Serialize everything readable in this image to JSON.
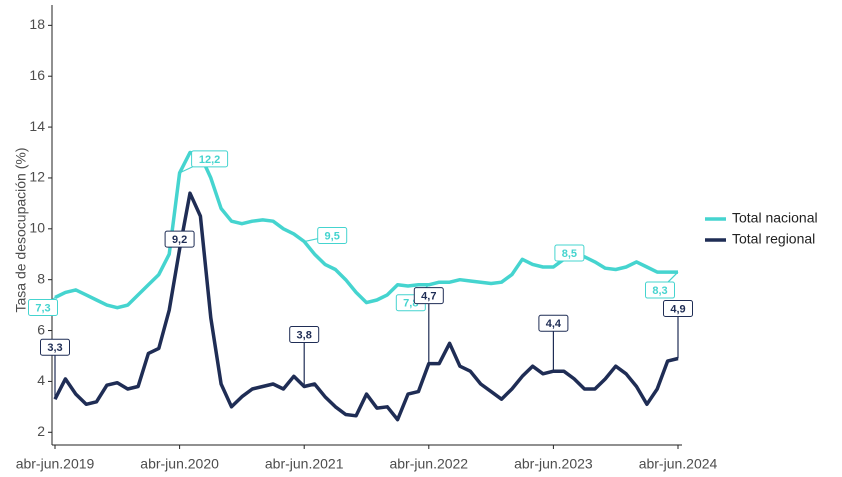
{
  "chart_data": {
    "type": "line",
    "y_label": "Tasa de desocupación (%)",
    "categories": [
      "abr-jun.2019",
      null,
      null,
      null,
      null,
      null,
      null,
      null,
      null,
      null,
      null,
      null,
      "abr-jun.2020",
      null,
      null,
      null,
      null,
      null,
      null,
      null,
      null,
      null,
      null,
      null,
      "abr-jun.2021",
      null,
      null,
      null,
      null,
      null,
      null,
      null,
      null,
      null,
      null,
      null,
      "abr-jun.2022",
      null,
      null,
      null,
      null,
      null,
      null,
      null,
      null,
      null,
      null,
      null,
      "abr-jun.2023",
      null,
      null,
      null,
      null,
      null,
      null,
      null,
      null,
      null,
      null,
      null,
      "abr-jun.2024"
    ],
    "series": [
      {
        "name": "Total nacional",
        "color": "#45d4cf",
        "values": [
          7.3,
          7.5,
          7.6,
          7.4,
          7.2,
          7.0,
          6.9,
          7.0,
          7.4,
          7.8,
          8.2,
          9.0,
          12.2,
          13.0,
          12.9,
          12.0,
          10.8,
          10.3,
          10.2,
          10.3,
          10.35,
          10.3,
          10.0,
          9.8,
          9.5,
          9.0,
          8.6,
          8.4,
          8.0,
          7.5,
          7.1,
          7.2,
          7.4,
          7.8,
          7.75,
          7.8,
          7.8,
          7.9,
          7.9,
          8.0,
          7.95,
          7.9,
          7.85,
          7.9,
          8.2,
          8.8,
          8.6,
          8.5,
          8.5,
          8.8,
          9.0,
          8.9,
          8.7,
          8.45,
          8.4,
          8.5,
          8.7,
          8.5,
          8.3,
          8.3,
          8.3
        ],
        "value_labels": [
          "7,3",
          null,
          null,
          null,
          null,
          null,
          null,
          null,
          null,
          null,
          null,
          null,
          "12,2",
          null,
          null,
          null,
          null,
          null,
          null,
          null,
          null,
          null,
          null,
          null,
          "9,5",
          null,
          null,
          null,
          null,
          null,
          null,
          null,
          null,
          null,
          null,
          null,
          "7,8",
          null,
          null,
          null,
          null,
          null,
          null,
          null,
          null,
          null,
          null,
          null,
          "8,5",
          null,
          null,
          null,
          null,
          null,
          null,
          null,
          null,
          null,
          null,
          null,
          "8,3"
        ]
      },
      {
        "name": "Total regional",
        "color": "#1f2d55",
        "values": [
          3.3,
          4.1,
          3.5,
          3.1,
          3.2,
          3.85,
          3.95,
          3.7,
          3.8,
          5.1,
          5.3,
          6.8,
          9.2,
          11.4,
          10.5,
          6.5,
          3.9,
          3.0,
          3.4,
          3.7,
          3.8,
          3.9,
          3.7,
          4.2,
          3.8,
          3.9,
          3.4,
          3.0,
          2.7,
          2.65,
          3.5,
          2.95,
          3.0,
          2.5,
          3.5,
          3.6,
          4.7,
          4.7,
          5.5,
          4.6,
          4.4,
          3.9,
          3.6,
          3.3,
          3.7,
          4.2,
          4.6,
          4.3,
          4.4,
          4.4,
          4.1,
          3.7,
          3.7,
          4.1,
          4.6,
          4.3,
          3.8,
          3.1,
          3.7,
          4.8,
          4.9
        ],
        "value_labels": [
          "3,3",
          null,
          null,
          null,
          null,
          null,
          null,
          null,
          null,
          null,
          null,
          null,
          "9,2",
          null,
          null,
          null,
          null,
          null,
          null,
          null,
          null,
          null,
          null,
          null,
          "3,8",
          null,
          null,
          null,
          null,
          null,
          null,
          null,
          null,
          null,
          null,
          null,
          "4,7",
          null,
          null,
          null,
          null,
          null,
          null,
          null,
          null,
          null,
          null,
          null,
          "4,4",
          null,
          null,
          null,
          null,
          null,
          null,
          null,
          null,
          null,
          null,
          null,
          "4,9"
        ]
      }
    ],
    "ylim": [
      1.5,
      18.8
    ],
    "yticks": [
      2,
      4,
      6,
      8,
      10,
      12,
      14,
      16,
      18
    ],
    "grid": false,
    "legend": "right"
  }
}
